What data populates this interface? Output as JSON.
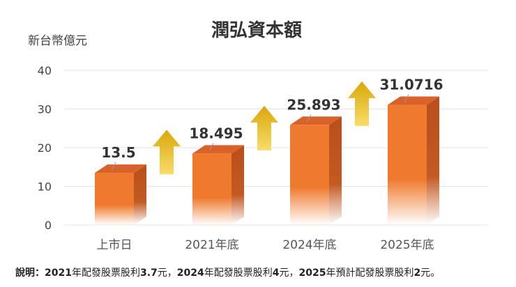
{
  "chart_data": {
    "type": "bar",
    "title": "潤弘資本額",
    "ylabel": "新台幣億元",
    "xlabel": "",
    "ylim": [
      0,
      40
    ],
    "yticks": [
      0,
      10,
      20,
      30,
      40
    ],
    "grid": true,
    "categories": [
      "上市日",
      "2021年底",
      "2024年底",
      "2025年底"
    ],
    "values": [
      13.5,
      18.495,
      25.893,
      31.0716
    ],
    "labels": [
      "13.5",
      "18.495",
      "25.893",
      "31.0716"
    ],
    "annotations": [
      "upward arrow between each consecutive pair of bars"
    ]
  },
  "colors": {
    "bar_front": "#ef7a2e",
    "bar_side": "#b94f1c",
    "bar_top": "#d9622a",
    "arrow": "#e2b412",
    "grid": "#e3e3e3",
    "text": "#333333"
  },
  "note": {
    "prefix": "說明：",
    "p1_year": "2021",
    "p1_text": "年配發股票股利",
    "p1_amount": "3.7",
    "p1_unit": "元，",
    "p2_year": "2024",
    "p2_text": "年配發股票股利",
    "p2_amount": "4",
    "p2_unit": "元，",
    "p3_year": "2025",
    "p3_text": "年預計配發股票股利",
    "p3_amount": "2",
    "p3_unit": "元。"
  }
}
